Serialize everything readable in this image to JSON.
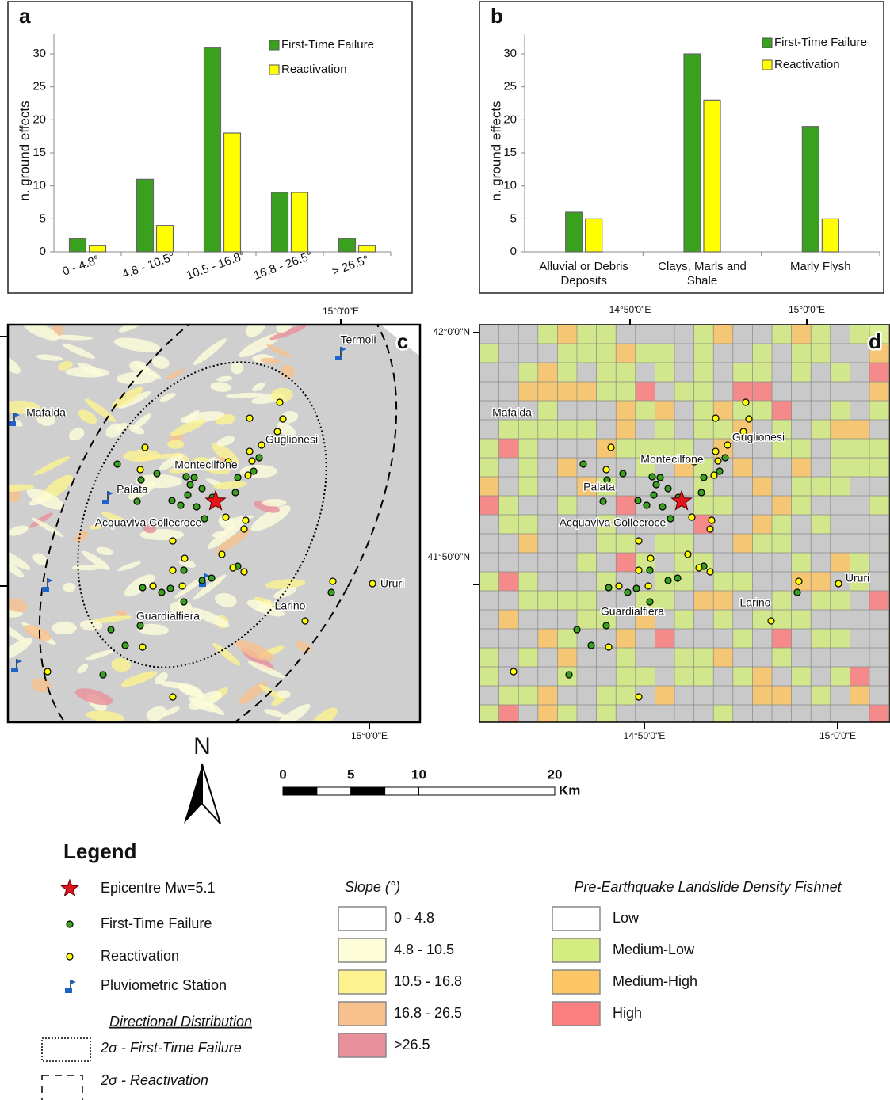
{
  "chart_data": [
    {
      "type": "bar",
      "panel_label": "a",
      "y_label": "n. ground effects",
      "categories": [
        "0 - 4.8°",
        "4.8 - 10.5°",
        "10.5 - 16.8°",
        "16.8 - 26.5°",
        "> 26.5°"
      ],
      "series": [
        {
          "name": "First-Time Failure",
          "color": "#3aa11e",
          "values": [
            2,
            11,
            31,
            9,
            2
          ]
        },
        {
          "name": "Reactivation",
          "color": "#ffff00",
          "values": [
            1,
            4,
            18,
            9,
            1
          ]
        }
      ],
      "ylim": [
        0,
        33
      ],
      "yticks": [
        0,
        5,
        10,
        15,
        20,
        25,
        30
      ]
    },
    {
      "type": "bar",
      "panel_label": "b",
      "y_label": "n. ground effects",
      "categories": [
        "Alluvial or Debris Deposits",
        "Clays, Marls and Shale",
        "Marly Flysh"
      ],
      "series": [
        {
          "name": "First-Time Failure",
          "color": "#3aa11e",
          "values": [
            6,
            30,
            19
          ]
        },
        {
          "name": "Reactivation",
          "color": "#ffff00",
          "values": [
            5,
            23,
            5
          ]
        }
      ],
      "ylim": [
        0,
        33
      ],
      "yticks": [
        0,
        5,
        10,
        15,
        20,
        25,
        30
      ]
    }
  ],
  "maps": [
    {
      "panel_label": "c",
      "coordinate_labels": [
        "15°0'0\"E",
        "15°0'0\"E"
      ],
      "places": [
        "Termoli",
        "Mafalda",
        "Guglionesi",
        "Montecilfone",
        "Palata",
        "Acquaviva Collecroce",
        "Ururi",
        "Larino",
        "Guardialfiera"
      ]
    },
    {
      "panel_label": "d",
      "coordinate_labels": [
        "14°50'0\"E",
        "15°0'0\"E",
        "42°0'0\"N",
        "41°50'0\"N",
        "14°50'0\"E",
        "15°0'0\"E"
      ],
      "places": [
        "Mafalda",
        "Guglionesi",
        "Montecilfone",
        "Palata",
        "Acquaviva Collecroce",
        "Ururi",
        "Larino",
        "Guardialfiera"
      ]
    }
  ],
  "north_arrow": "N",
  "scale_bar": {
    "ticks": [
      0,
      5,
      10,
      20
    ],
    "unit": "Km"
  },
  "legend": {
    "title": "Legend",
    "items": [
      "Epicentre Mw=5.1",
      "First-Time Failure",
      "Reactivation",
      "Pluviometric Station"
    ],
    "directional": {
      "title": "Directional Distribution",
      "items": [
        "2σ - First-Time Failure",
        "2σ - Reactivation"
      ]
    },
    "slope": {
      "title": "Slope (°)",
      "items": [
        {
          "label": "0 - 4.8",
          "color": "#ffffff"
        },
        {
          "label": "4.8 - 10.5",
          "color": "#fdfdd9"
        },
        {
          "label": "10.5  - 16.8",
          "color": "#fdf290"
        },
        {
          "label": "16.8 - 26.5",
          "color": "#f8c08d"
        },
        {
          "label": ">26.5",
          "color": "#e88f9a"
        }
      ]
    },
    "fishnet": {
      "title": "Pre-Earthquake Landslide Density Fishnet",
      "items": [
        {
          "label": "Low",
          "color": "#ffffff"
        },
        {
          "label": "Medium-Low",
          "color": "#d4ec80"
        },
        {
          "label": "Medium-High",
          "color": "#fdc766"
        },
        {
          "label": "High",
          "color": "#fc7f7f"
        }
      ]
    }
  }
}
